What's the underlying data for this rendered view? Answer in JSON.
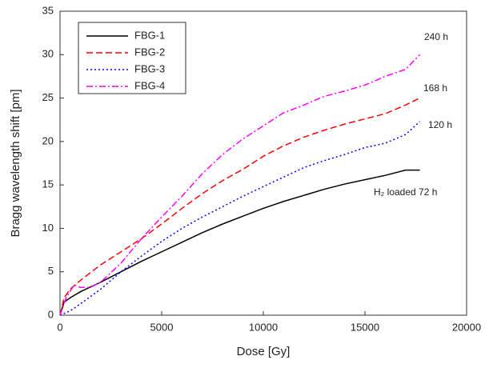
{
  "chart_data": {
    "type": "line",
    "x_label": "Dose [Gy]",
    "y_label": "Bragg wavelength shift [pm]",
    "xlim": [
      0,
      20000
    ],
    "xticks": [
      0,
      5000,
      10000,
      15000,
      20000
    ],
    "ylim": [
      0,
      35
    ],
    "yticks": [
      0,
      5,
      10,
      15,
      20,
      25,
      30,
      35
    ],
    "legend": "upper left",
    "annotations": [
      "240 h",
      "168 h",
      "120 h",
      "H₂ loaded 72 h"
    ],
    "series": [
      {
        "name": "FBG-1",
        "color": "#000000",
        "dash": "solid",
        "x": [
          0,
          200,
          500,
          1000,
          2000,
          3000,
          4000,
          5000,
          6000,
          7000,
          8000,
          9000,
          10000,
          11000,
          12000,
          13000,
          14000,
          15000,
          16000,
          17000,
          17700
        ],
        "values": [
          0,
          1.5,
          2,
          2.7,
          3.8,
          5,
          6.2,
          7.3,
          8.4,
          9.5,
          10.5,
          11.4,
          12.3,
          13.1,
          13.8,
          14.5,
          15.1,
          15.6,
          16.1,
          16.7,
          16.7
        ]
      },
      {
        "name": "FBG-2",
        "color": "#ff0000",
        "dash": "dashed",
        "x": [
          0,
          200,
          500,
          1000,
          2000,
          3000,
          4000,
          5000,
          6000,
          7000,
          8000,
          9000,
          10000,
          11000,
          12000,
          13000,
          14000,
          15000,
          16000,
          17000,
          17700
        ],
        "values": [
          0,
          2,
          3,
          4,
          5.8,
          7.3,
          8.8,
          10.5,
          12.3,
          14,
          15.5,
          16.8,
          18.3,
          19.5,
          20.5,
          21.3,
          22,
          22.6,
          23.2,
          24.2,
          25
        ]
      },
      {
        "name": "FBG-3",
        "color": "#0000ff",
        "dash": "dotted",
        "x": [
          0,
          500,
          1000,
          2000,
          3000,
          4000,
          5000,
          6000,
          7000,
          8000,
          9000,
          10000,
          11000,
          12000,
          13000,
          14000,
          15000,
          16000,
          17000,
          17700
        ],
        "values": [
          0,
          0.5,
          1.3,
          3,
          5,
          6.8,
          8.5,
          10,
          11.3,
          12.5,
          13.7,
          14.8,
          15.9,
          17,
          17.8,
          18.5,
          19.3,
          19.8,
          20.8,
          22.3
        ]
      },
      {
        "name": "FBG-4",
        "color": "#ff00ff",
        "dash": "dashdot",
        "x": [
          0,
          300,
          700,
          1000,
          1500,
          2000,
          3000,
          4000,
          5000,
          6000,
          7000,
          8000,
          9000,
          10000,
          11000,
          12000,
          13000,
          14000,
          15000,
          16000,
          17000,
          17700
        ],
        "values": [
          0,
          2,
          3.5,
          3.2,
          3.2,
          3.8,
          6,
          8.8,
          11.3,
          13.7,
          16.3,
          18.5,
          20.3,
          21.8,
          23.3,
          24.2,
          25.2,
          25.8,
          26.5,
          27.5,
          28.3,
          30
        ]
      }
    ]
  }
}
